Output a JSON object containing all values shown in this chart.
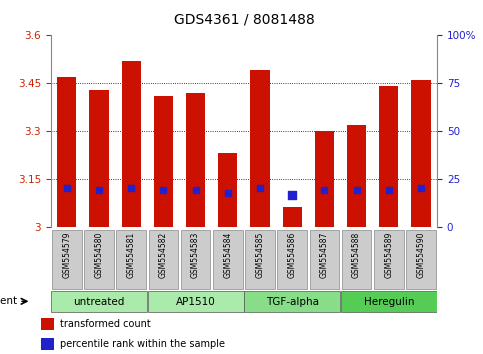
{
  "title": "GDS4361 / 8081488",
  "samples": [
    "GSM554579",
    "GSM554580",
    "GSM554581",
    "GSM554582",
    "GSM554583",
    "GSM554584",
    "GSM554585",
    "GSM554586",
    "GSM554587",
    "GSM554588",
    "GSM554589",
    "GSM554590"
  ],
  "red_values": [
    3.47,
    3.43,
    3.52,
    3.41,
    3.42,
    3.23,
    3.49,
    3.06,
    3.3,
    3.32,
    3.44,
    3.46
  ],
  "blue_values": [
    3.12,
    3.115,
    3.12,
    3.115,
    3.115,
    3.105,
    3.12,
    3.1,
    3.115,
    3.115,
    3.115,
    3.12
  ],
  "blue_marker_size": [
    18,
    18,
    18,
    18,
    18,
    18,
    18,
    35,
    18,
    18,
    18,
    18
  ],
  "ymin": 3.0,
  "ymax": 3.6,
  "yticks_left": [
    3.0,
    3.15,
    3.3,
    3.45,
    3.6
  ],
  "ytick_left_labels": [
    "3",
    "3.15",
    "3.3",
    "3.45",
    "3.6"
  ],
  "yticks_right_vals": [
    3.0,
    3.15,
    3.3,
    3.45,
    3.6
  ],
  "yticks_right_labels": [
    "0",
    "25",
    "50",
    "75",
    "100%"
  ],
  "groups": [
    {
      "label": "untreated",
      "start": 0,
      "end": 3
    },
    {
      "label": "AP1510",
      "start": 3,
      "end": 6
    },
    {
      "label": "TGF-alpha",
      "start": 6,
      "end": 9
    },
    {
      "label": "Heregulin",
      "start": 9,
      "end": 12
    }
  ],
  "group_colors": [
    "#aaeaaa",
    "#aaeaaa",
    "#88dd88",
    "#55cc55"
  ],
  "bar_color": "#cc1100",
  "dot_color": "#2222cc",
  "bar_width": 0.6,
  "left_tick_color": "#cc2200",
  "right_tick_color": "#2222cc",
  "agent_label": "agent",
  "legend_items": [
    {
      "label": "transformed count",
      "color": "#cc1100"
    },
    {
      "label": "percentile rank within the sample",
      "color": "#2222cc"
    }
  ],
  "sample_box_color": "#cccccc",
  "title_fontsize": 10,
  "tick_fontsize": 7.5,
  "sample_fontsize": 5.5,
  "group_fontsize": 7.5
}
